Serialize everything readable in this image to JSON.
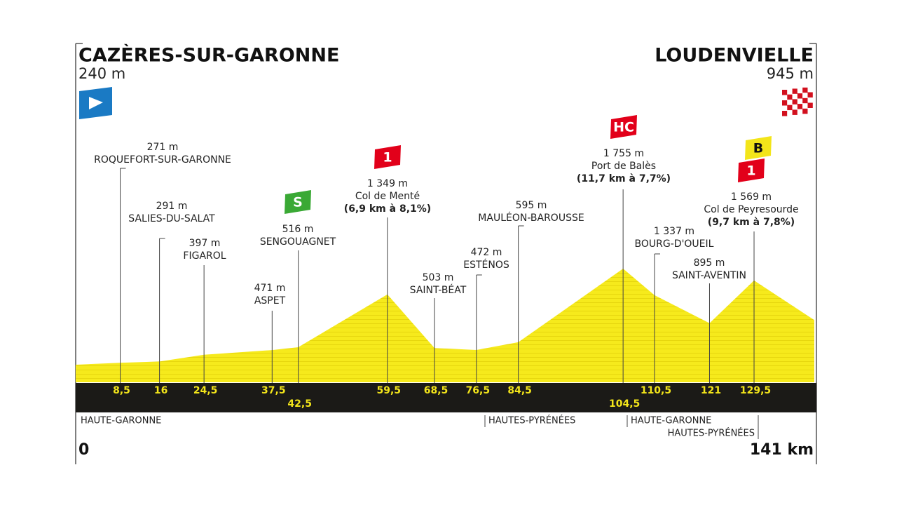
{
  "start": {
    "name": "CAZÈRES-SUR-GARONNE",
    "altitude": {
      "value": 240,
      "label": "240 m"
    },
    "km": 0
  },
  "finish": {
    "name": "LOUDENVIELLE",
    "altitude": {
      "value": 945,
      "label": "945 m"
    },
    "km": {
      "value": 141,
      "label": "141 km"
    }
  },
  "waypoints": [
    {
      "km": {
        "value": 8.5,
        "label": "8,5"
      },
      "name": "ROQUEFORT-SUR-GARONNE",
      "altitude": {
        "value": 271,
        "label": "271 m"
      }
    },
    {
      "km": 16,
      "name": "SALIES-DU-SALAT",
      "altitude": {
        "value": 291,
        "label": "291 m"
      }
    },
    {
      "km": {
        "value": 24.5,
        "label": "24,5"
      },
      "name": "FIGAROL",
      "altitude": {
        "value": 397,
        "label": "397 m"
      }
    },
    {
      "km": {
        "value": 37.5,
        "label": "37,5"
      },
      "name": "ASPET",
      "altitude": {
        "value": 471,
        "label": "471 m"
      }
    },
    {
      "km": {
        "value": 42.5,
        "label": "42,5"
      },
      "name": "SENGOUAGNET",
      "altitude": {
        "value": 516,
        "label": "516 m"
      },
      "sprint": "S"
    },
    {
      "km": {
        "value": 59.5,
        "label": "59,5"
      },
      "name": "Col de Menté",
      "altitude": {
        "value": 1349,
        "label": "1 349 m"
      },
      "climb": {
        "category": "1",
        "detail": "(6,9 km à 8,1%)"
      }
    },
    {
      "km": {
        "value": 68.5,
        "label": "68,5"
      },
      "name": "SAINT-BÉAT",
      "altitude": {
        "value": 503,
        "label": "503 m"
      }
    },
    {
      "km": {
        "value": 76.5,
        "label": "76,5"
      },
      "name": "ESTÉNOS",
      "altitude": {
        "value": 472,
        "label": "472 m"
      }
    },
    {
      "km": {
        "value": 84.5,
        "label": "84,5"
      },
      "name": "MAULÉON-BAROUSSE",
      "altitude": {
        "value": 595,
        "label": "595 m"
      }
    },
    {
      "km": {
        "value": 104.5,
        "label": "104,5"
      },
      "name": "Port de Balès",
      "altitude": {
        "value": 1755,
        "label": "1 755 m"
      },
      "climb": {
        "category": "HC",
        "detail": "(11,7 km à 7,7%)"
      }
    },
    {
      "km": {
        "value": 110.5,
        "label": "110,5"
      },
      "name": "BOURG-D'OUEIL",
      "altitude": {
        "value": 1337,
        "label": "1 337 m"
      }
    },
    {
      "km": 121,
      "name": "SAINT-AVENTIN",
      "altitude": {
        "value": 895,
        "label": "895 m"
      }
    },
    {
      "km": {
        "value": 129.5,
        "label": "129,5"
      },
      "name": "Col de Peyresourde",
      "altitude": {
        "value": 1569,
        "label": "1 569 m"
      },
      "climb": {
        "category": "1",
        "detail": "(9,7 km à 7,8%)"
      },
      "bonus": "B"
    }
  ],
  "regions": [
    "HAUTE-GARONNE",
    "HAUTES-PYRÉNÉES",
    "HAUTE-GARONNE",
    "HAUTES-PYRÉNÉES"
  ]
}
